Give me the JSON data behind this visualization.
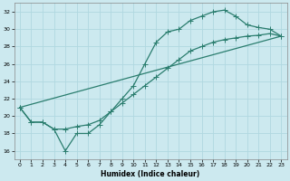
{
  "xlabel": "Humidex (Indice chaleur)",
  "xlim": [
    -0.5,
    23.5
  ],
  "ylim": [
    15,
    33
  ],
  "yticks": [
    16,
    18,
    20,
    22,
    24,
    26,
    28,
    30,
    32
  ],
  "xticks": [
    0,
    1,
    2,
    3,
    4,
    5,
    6,
    7,
    8,
    9,
    10,
    11,
    12,
    13,
    14,
    15,
    16,
    17,
    18,
    19,
    20,
    21,
    22,
    23
  ],
  "bg_color": "#cce9ef",
  "grid_color": "#b0d8e0",
  "line_color": "#2a7d6e",
  "line1_x": [
    0,
    1,
    2,
    3,
    4,
    5,
    6,
    7,
    8,
    9,
    10,
    11,
    12,
    13,
    14,
    15,
    16,
    17,
    18,
    19,
    20,
    21,
    22,
    23
  ],
  "line1_y": [
    21.0,
    19.3,
    19.3,
    18.5,
    16.0,
    18.0,
    18.0,
    19.0,
    20.5,
    22.0,
    23.5,
    26.0,
    28.5,
    29.7,
    30.0,
    31.0,
    31.5,
    32.0,
    32.2,
    31.5,
    30.5,
    30.2,
    30.0,
    29.2
  ],
  "line2_x": [
    0,
    1,
    2,
    3,
    4,
    5,
    6,
    7,
    8,
    9,
    10,
    11,
    12,
    13,
    14,
    15,
    16,
    17,
    18,
    19,
    20,
    21,
    22,
    23
  ],
  "line2_y": [
    21.0,
    19.3,
    19.3,
    18.5,
    18.5,
    18.8,
    19.0,
    19.5,
    20.5,
    21.5,
    22.5,
    23.5,
    24.5,
    25.5,
    26.5,
    27.5,
    28.0,
    28.5,
    28.8,
    29.0,
    29.2,
    29.3,
    29.5,
    29.2
  ],
  "line3_x": [
    0,
    23
  ],
  "line3_y": [
    21.0,
    29.2
  ]
}
